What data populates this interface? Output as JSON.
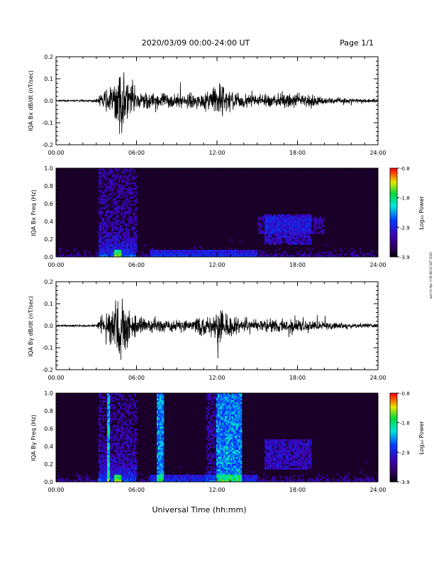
{
  "header": {
    "title": "2020/03/09  00:00-24:00 UT",
    "page": "Page 1/1"
  },
  "side_note": "wsh Fri Apr 3 09:48:33 EDT 2020",
  "footer": {
    "xlabel": "Universal Time (hh:mm)"
  },
  "colorbar": {
    "label": "Log₁₀ Power",
    "ticks": [
      "-0.8",
      "-1.8",
      "-2.9",
      "-3.9"
    ]
  },
  "chart_data": [
    {
      "type": "line",
      "ylabel": "IQA Bx dB/dt (nT/sec)",
      "ylim": [
        -0.2,
        0.2
      ],
      "yticks": [
        "0.2",
        "0.1",
        "0.0",
        "-0.1",
        "-0.2"
      ],
      "xticks": [
        "00:00",
        "06:00",
        "12:00",
        "18:00",
        "24:00"
      ],
      "xlim_hours": [
        0,
        24
      ],
      "envelope": {
        "hours": [
          0,
          3.0,
          3.4,
          3.8,
          4.3,
          4.6,
          4.9,
          5.2,
          5.6,
          6.0,
          7.0,
          8.0,
          9.0,
          10.0,
          11.0,
          11.7,
          12.3,
          12.8,
          13.5,
          14.5,
          16.0,
          17.0,
          17.8,
          18.5,
          20.0,
          22.0,
          24.0
        ],
        "amplitude": [
          0.006,
          0.008,
          0.06,
          0.08,
          0.12,
          0.2,
          0.25,
          0.2,
          0.14,
          0.09,
          0.06,
          0.06,
          0.055,
          0.05,
          0.06,
          0.1,
          0.16,
          0.09,
          0.06,
          0.05,
          0.045,
          0.06,
          0.06,
          0.05,
          0.03,
          0.02,
          0.015
        ]
      }
    },
    {
      "type": "heatmap",
      "ylabel": "IQA Bx Freq (Hz)",
      "ylim": [
        0,
        1
      ],
      "yticks": [
        "1.0",
        "0.8",
        "0.6",
        "0.4",
        "0.2",
        "0.0"
      ],
      "xticks": [
        "00:00",
        "06:00",
        "12:00",
        "18:00",
        "24:00"
      ],
      "zlim": [
        -3.9,
        -0.8
      ]
    },
    {
      "type": "line",
      "ylabel": "IQA By dB/dt (nT/sec)",
      "ylim": [
        -0.2,
        0.2
      ],
      "yticks": [
        "0.2",
        "0.1",
        "0.0",
        "-0.1",
        "-0.2"
      ],
      "xticks": [
        "00:00",
        "06:00",
        "12:00",
        "18:00",
        "24:00"
      ],
      "xlim_hours": [
        0,
        24
      ],
      "envelope": {
        "hours": [
          0,
          3.0,
          3.4,
          3.8,
          4.3,
          4.6,
          4.9,
          5.2,
          5.6,
          6.0,
          7.0,
          8.0,
          9.0,
          10.0,
          11.0,
          11.7,
          12.3,
          12.8,
          13.5,
          14.5,
          16.0,
          17.0,
          17.8,
          18.5,
          20.0,
          22.0,
          24.0
        ],
        "amplitude": [
          0.006,
          0.01,
          0.07,
          0.09,
          0.14,
          0.22,
          0.25,
          0.2,
          0.12,
          0.08,
          0.06,
          0.06,
          0.05,
          0.05,
          0.07,
          0.09,
          0.13,
          0.1,
          0.06,
          0.05,
          0.045,
          0.055,
          0.06,
          0.05,
          0.03,
          0.02,
          0.015
        ]
      }
    },
    {
      "type": "heatmap",
      "ylabel": "IQA By Freq (Hz)",
      "ylim": [
        0,
        1
      ],
      "yticks": [
        "1.0",
        "0.8",
        "0.6",
        "0.4",
        "0.2",
        "0.0"
      ],
      "xticks": [
        "00:00",
        "06:00",
        "12:00",
        "18:00",
        "24:00"
      ],
      "zlim": [
        -3.9,
        -0.8
      ]
    }
  ]
}
